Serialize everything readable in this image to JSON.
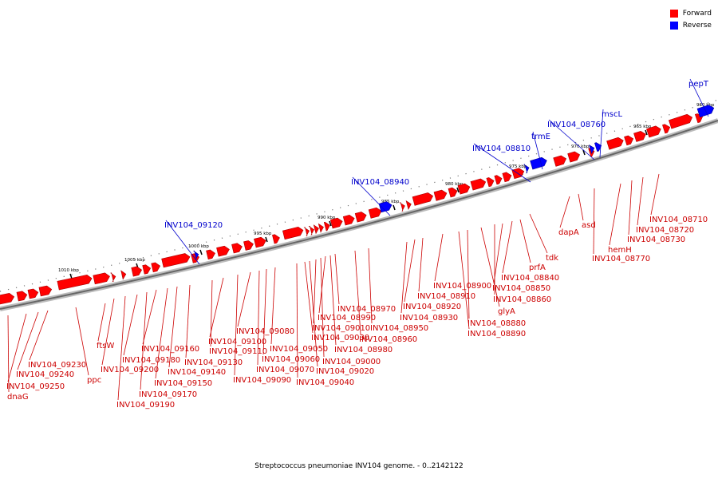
{
  "legend": [
    {
      "label": "Forward",
      "color": "#ff0000"
    },
    {
      "label": "Reverse",
      "color": "#0000ff"
    }
  ],
  "caption": "Streptococcus pneumoniae INV104 genome. - 0..2142122",
  "colors": {
    "forward": "#ff0000",
    "reverse": "#0000ff",
    "forward_label": "#cc0000",
    "reverse_label": "#0000cc",
    "backbone": "#888888"
  },
  "ticks": [
    "1010 kbp",
    "1005 kbp",
    "1000 kbp",
    "995 kbp",
    "990 kbp",
    "985 kbp",
    "980 kbp",
    "975 kbp",
    "970 kbp",
    "965 kbp",
    "960 kbp"
  ],
  "forward_labels": [
    "dnaG",
    "INV104_09250",
    "INV104_09240",
    "INV104_09230",
    "ppc",
    "ftsW",
    "INV104_09200",
    "INV104_09190",
    "INV104_09180",
    "INV104_09170",
    "INV104_09160",
    "INV104_09150",
    "INV104_09140",
    "INV104_09130",
    "INV104_09110",
    "INV104_09100",
    "INV104_09090",
    "INV104_09080",
    "INV104_09070",
    "INV104_09060",
    "INV104_09050",
    "INV104_09040",
    "INV104_09030",
    "INV104_09020",
    "INV104_09010",
    "INV104_09000",
    "INV104_08990",
    "INV104_08980",
    "INV104_08970",
    "INV104_08960",
    "INV104_08950",
    "INV104_08930",
    "INV104_08920",
    "INV104_08910",
    "INV104_08900",
    "INV104_08890",
    "INV104_08880",
    "glyA",
    "INV104_08860",
    "INV104_08850",
    "INV104_08840",
    "prfA",
    "tdk",
    "dapA",
    "asd",
    "INV104_08770",
    "hemH",
    "INV104_08730",
    "INV104_08720",
    "INV104_08710"
  ],
  "reverse_labels": [
    "INV104_09120",
    "INV104_08940",
    "INV104_08810",
    "trmE",
    "INV104_08760",
    "mscL",
    "pepT"
  ]
}
